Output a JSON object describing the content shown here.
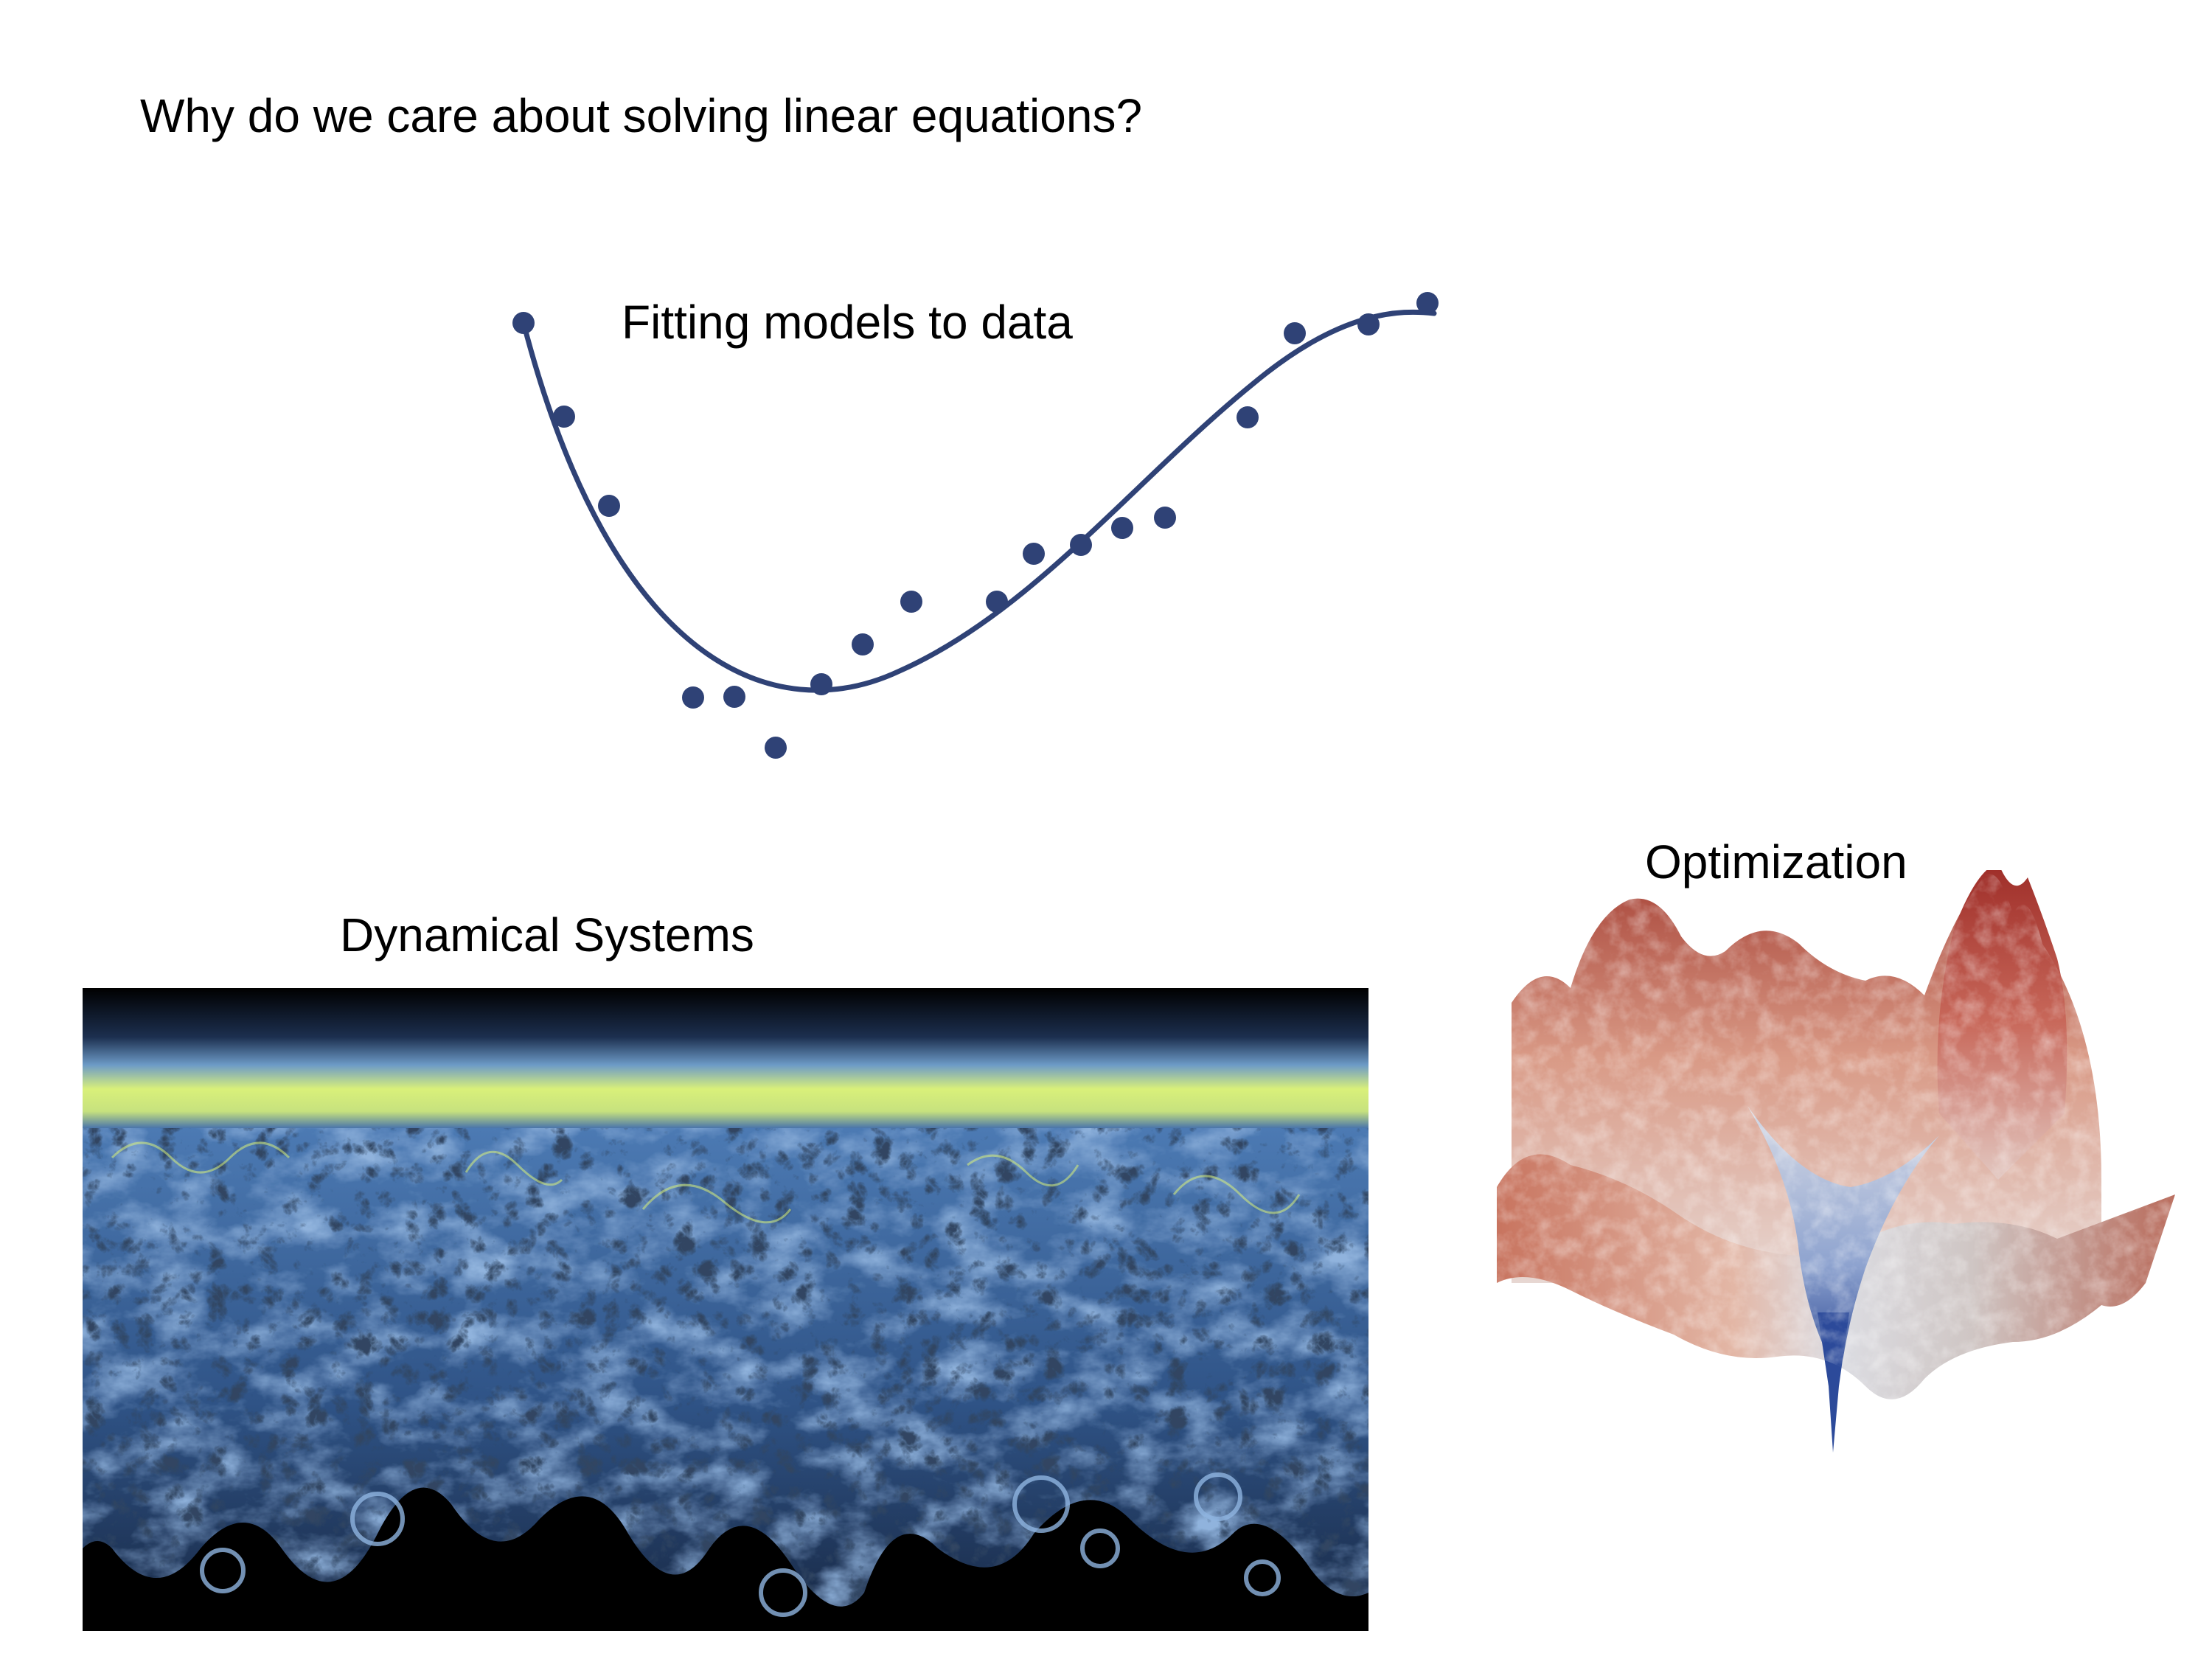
{
  "slide": {
    "title": "Why do we care about solving linear equations?"
  },
  "fitting": {
    "label": "Fitting models to data",
    "color": "#2f4276",
    "curve_icon": "fitted-curve",
    "point_icon": "data-point"
  },
  "dynamical_systems": {
    "label": "Dynamical Systems",
    "image": "turbulent-mixing-simulation",
    "colors": [
      "#000000",
      "#3e6aa8",
      "#7fa6d8",
      "#d9f07a"
    ]
  },
  "optimization": {
    "label": "Optimization",
    "image": "loss-landscape-surface",
    "colors": [
      "#b03a30",
      "#e2a48e",
      "#d9d9d9",
      "#2c4a9a"
    ]
  }
}
